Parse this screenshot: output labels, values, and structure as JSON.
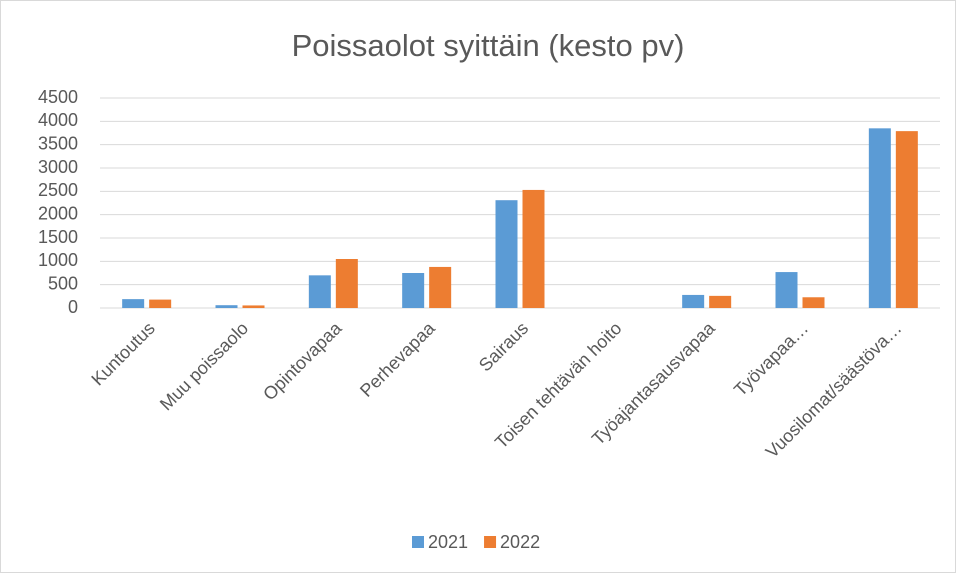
{
  "chart_data": {
    "type": "bar",
    "title": "Poissaolot syittäin (kesto pv)",
    "categories": [
      "Kuntoutus",
      "Muu poissaolo",
      "Opintovapaa",
      "Perhevapaa",
      "Sairaus",
      "Toisen tehtävän hoito",
      "Työajantasausvapaa",
      "Työvapaa…",
      "Vuosilomat/säästöva…"
    ],
    "series": [
      {
        "name": "2021",
        "color": "#5b9bd5",
        "values": [
          190,
          60,
          700,
          750,
          2310,
          0,
          280,
          770,
          3850
        ]
      },
      {
        "name": "2022",
        "color": "#ed7d31",
        "values": [
          180,
          55,
          1050,
          880,
          2530,
          0,
          260,
          230,
          3790
        ]
      }
    ],
    "ylim": [
      0,
      4500
    ],
    "yticks": [
      0,
      500,
      1000,
      1500,
      2000,
      2500,
      3000,
      3500,
      4000,
      4500
    ],
    "grid": true,
    "legend": "bottom"
  }
}
